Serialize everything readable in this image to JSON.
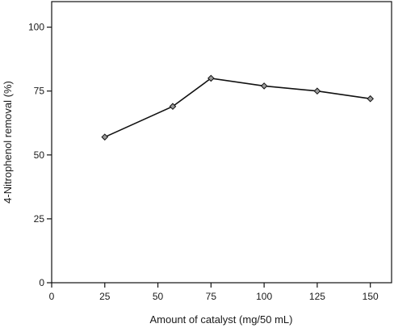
{
  "chart_data": {
    "type": "line",
    "title": "",
    "xlabel": "Amount of catalyst (mg/50 mL)",
    "ylabel": "4-Nitrophenol removal (%)",
    "xlim": [
      0,
      160
    ],
    "ylim": [
      0,
      110
    ],
    "xticks": [
      0,
      25,
      50,
      75,
      100,
      125,
      150
    ],
    "yticks": [
      0,
      25,
      50,
      75,
      100
    ],
    "grid": false,
    "legend": "none",
    "marker": "diamond",
    "line_color": "#111111",
    "series": [
      {
        "x": [
          25,
          57,
          75,
          100,
          125,
          150
        ],
        "y": [
          57,
          69,
          80,
          77,
          75,
          72
        ]
      }
    ]
  }
}
